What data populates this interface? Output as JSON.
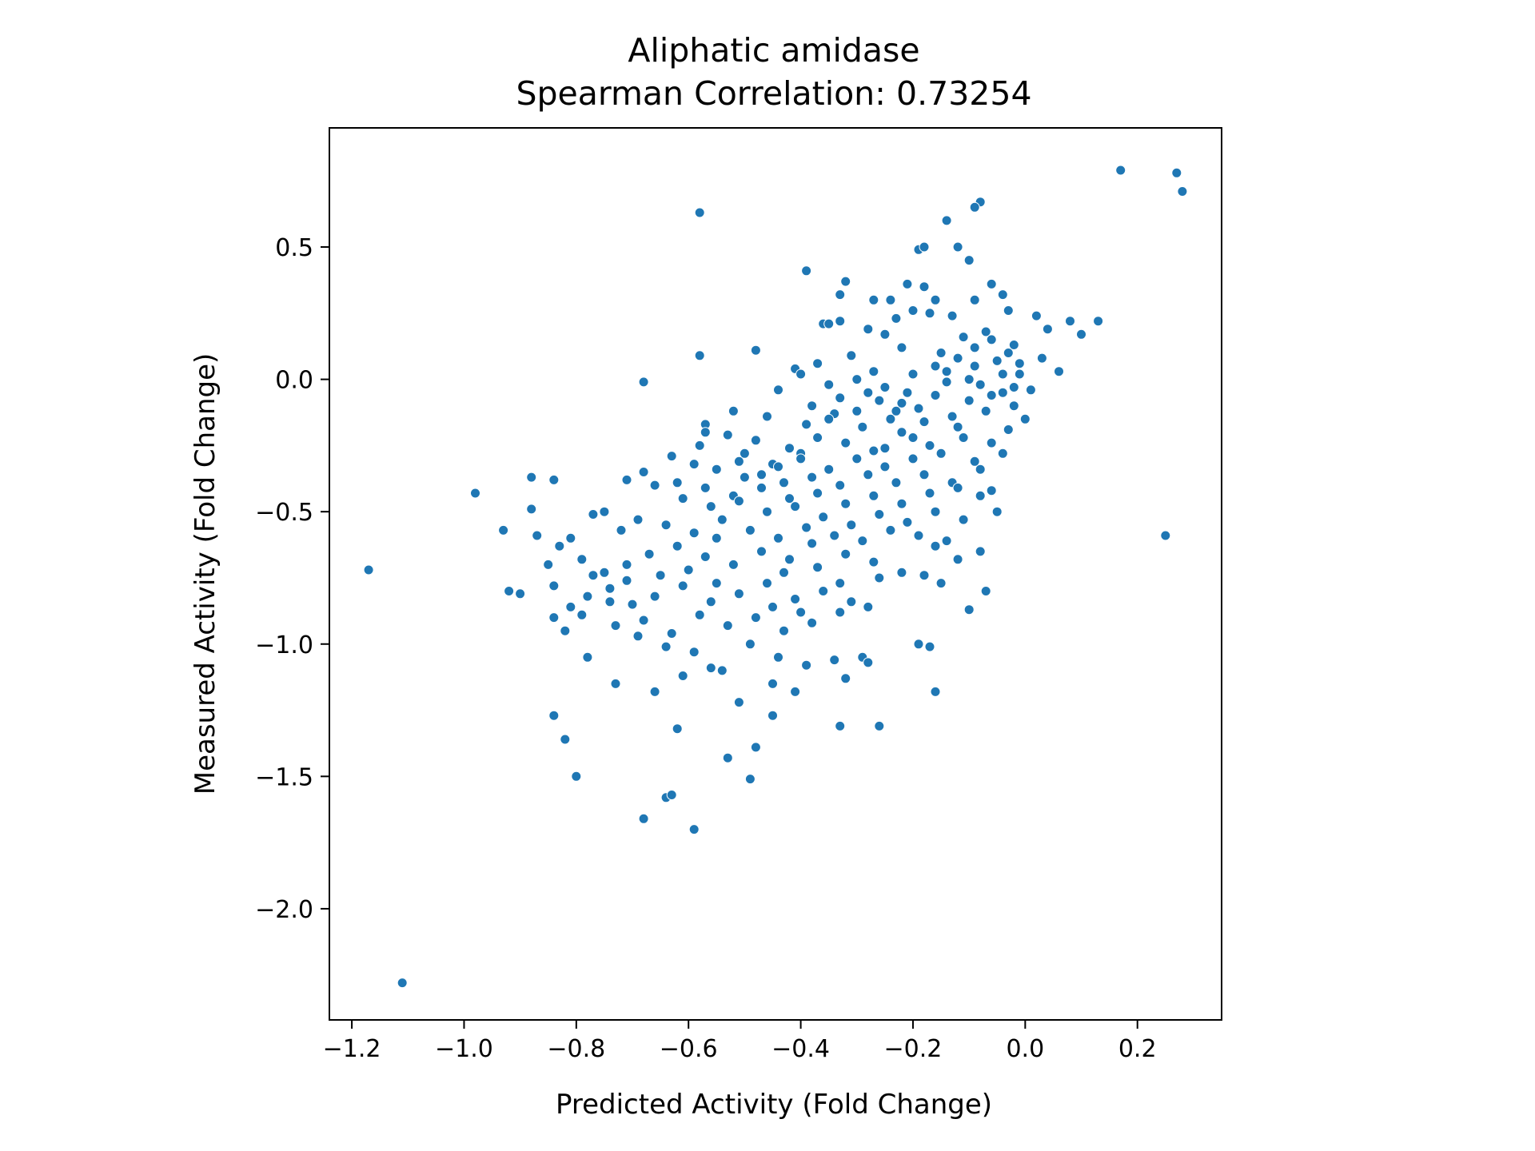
{
  "chart_data": {
    "type": "scatter",
    "title": "Aliphatic amidase",
    "subtitle": "Spearman Correlation: 0.73254",
    "xlabel": "Predicted Activity (Fold Change)",
    "ylabel": "Measured Activity (Fold Change)",
    "xlim": [
      -1.24,
      0.35
    ],
    "ylim": [
      -2.42,
      0.95
    ],
    "xticks": [
      -1.2,
      -1.0,
      -0.8,
      -0.6,
      -0.4,
      -0.2,
      0.0,
      0.2
    ],
    "xtick_labels": [
      "−1.2",
      "−1.0",
      "−0.8",
      "−0.6",
      "−0.4",
      "−0.2",
      "0.0",
      "0.2"
    ],
    "yticks": [
      0.5,
      0.0,
      -0.5,
      -1.0,
      -1.5,
      -2.0
    ],
    "ytick_labels": [
      "0.5",
      "0.0",
      "−0.5",
      "−1.0",
      "−1.5",
      "−2.0"
    ],
    "grid": false,
    "legend": "none",
    "marker_color": "#1f77b4",
    "points": [
      [
        0.17,
        0.79
      ],
      [
        0.27,
        0.78
      ],
      [
        0.28,
        0.71
      ],
      [
        -0.58,
        0.63
      ],
      [
        -0.08,
        0.67
      ],
      [
        -0.09,
        0.65
      ],
      [
        -0.14,
        0.6
      ],
      [
        -0.19,
        0.49
      ],
      [
        -0.18,
        0.5
      ],
      [
        -0.12,
        0.5
      ],
      [
        -0.1,
        0.45
      ],
      [
        -0.39,
        0.41
      ],
      [
        -0.32,
        0.37
      ],
      [
        -0.06,
        0.36
      ],
      [
        -0.33,
        0.32
      ],
      [
        -0.27,
        0.3
      ],
      [
        -0.21,
        0.36
      ],
      [
        -0.18,
        0.35
      ],
      [
        -0.24,
        0.3
      ],
      [
        -0.16,
        0.3
      ],
      [
        -0.04,
        0.32
      ],
      [
        -0.36,
        0.21
      ],
      [
        -0.35,
        0.21
      ],
      [
        -0.33,
        0.22
      ],
      [
        -0.28,
        0.19
      ],
      [
        -0.25,
        0.17
      ],
      [
        -0.23,
        0.23
      ],
      [
        -0.2,
        0.26
      ],
      [
        -0.17,
        0.25
      ],
      [
        -0.13,
        0.24
      ],
      [
        -0.09,
        0.3
      ],
      [
        -0.03,
        0.26
      ],
      [
        0.02,
        0.24
      ],
      [
        0.04,
        0.19
      ],
      [
        0.08,
        0.22
      ],
      [
        0.1,
        0.17
      ],
      [
        0.13,
        0.22
      ],
      [
        -0.58,
        0.09
      ],
      [
        -0.48,
        0.11
      ],
      [
        -0.41,
        0.04
      ],
      [
        -0.37,
        0.06
      ],
      [
        -0.31,
        0.09
      ],
      [
        -0.27,
        0.03
      ],
      [
        -0.22,
        0.12
      ],
      [
        -0.15,
        0.1
      ],
      [
        -0.11,
        0.16
      ],
      [
        -0.07,
        0.18
      ],
      [
        -0.02,
        0.13
      ],
      [
        0.03,
        0.08
      ],
      [
        0.06,
        0.03
      ],
      [
        -0.68,
        -0.01
      ],
      [
        -0.4,
        0.02
      ],
      [
        -0.35,
        -0.02
      ],
      [
        -0.3,
        0.0
      ],
      [
        -0.25,
        -0.03
      ],
      [
        -0.2,
        0.02
      ],
      [
        -0.14,
        -0.01
      ],
      [
        -0.09,
        0.05
      ],
      [
        -0.05,
        0.07
      ],
      [
        -0.01,
        0.02
      ],
      [
        0.01,
        -0.04
      ],
      [
        -0.04,
        -0.05
      ],
      [
        -0.1,
        -0.08
      ],
      [
        -0.16,
        -0.06
      ],
      [
        -0.22,
        -0.09
      ],
      [
        -0.28,
        -0.05
      ],
      [
        -0.33,
        -0.07
      ],
      [
        -0.38,
        -0.1
      ],
      [
        -0.44,
        -0.04
      ],
      [
        -0.52,
        -0.12
      ],
      [
        -0.46,
        -0.14
      ],
      [
        -0.39,
        -0.17
      ],
      [
        -0.34,
        -0.13
      ],
      [
        -0.29,
        -0.18
      ],
      [
        -0.24,
        -0.15
      ],
      [
        -0.19,
        -0.11
      ],
      [
        -0.13,
        -0.14
      ],
      [
        -0.07,
        -0.12
      ],
      [
        -0.02,
        -0.1
      ],
      [
        0.0,
        -0.15
      ],
      [
        -0.57,
        -0.17
      ],
      [
        -0.57,
        -0.2
      ],
      [
        -0.53,
        -0.21
      ],
      [
        -0.48,
        -0.23
      ],
      [
        -0.42,
        -0.26
      ],
      [
        -0.37,
        -0.22
      ],
      [
        -0.32,
        -0.24
      ],
      [
        -0.27,
        -0.27
      ],
      [
        -0.22,
        -0.2
      ],
      [
        -0.17,
        -0.25
      ],
      [
        -0.11,
        -0.22
      ],
      [
        -0.06,
        -0.24
      ],
      [
        -0.03,
        -0.19
      ],
      [
        -0.58,
        -0.25
      ],
      [
        -0.5,
        -0.28
      ],
      [
        -0.45,
        -0.32
      ],
      [
        -0.4,
        -0.28
      ],
      [
        -0.35,
        -0.34
      ],
      [
        -0.3,
        -0.3
      ],
      [
        -0.25,
        -0.33
      ],
      [
        -0.2,
        -0.3
      ],
      [
        -0.15,
        -0.28
      ],
      [
        -0.09,
        -0.31
      ],
      [
        -0.04,
        -0.28
      ],
      [
        -0.63,
        -0.29
      ],
      [
        -0.59,
        -0.32
      ],
      [
        -0.55,
        -0.34
      ],
      [
        -0.51,
        -0.31
      ],
      [
        -0.47,
        -0.36
      ],
      [
        -0.43,
        -0.39
      ],
      [
        -0.38,
        -0.37
      ],
      [
        -0.33,
        -0.4
      ],
      [
        -0.28,
        -0.36
      ],
      [
        -0.23,
        -0.39
      ],
      [
        -0.18,
        -0.36
      ],
      [
        -0.13,
        -0.39
      ],
      [
        -0.08,
        -0.34
      ],
      [
        -0.68,
        -0.35
      ],
      [
        -0.62,
        -0.39
      ],
      [
        -0.57,
        -0.41
      ],
      [
        -0.52,
        -0.44
      ],
      [
        -0.47,
        -0.41
      ],
      [
        -0.42,
        -0.45
      ],
      [
        -0.37,
        -0.43
      ],
      [
        -0.32,
        -0.47
      ],
      [
        -0.27,
        -0.44
      ],
      [
        -0.22,
        -0.47
      ],
      [
        -0.17,
        -0.43
      ],
      [
        -0.12,
        -0.41
      ],
      [
        -0.08,
        -0.44
      ],
      [
        -0.06,
        -0.42
      ],
      [
        -0.71,
        -0.38
      ],
      [
        -0.66,
        -0.4
      ],
      [
        -0.61,
        -0.45
      ],
      [
        -0.56,
        -0.48
      ],
      [
        -0.51,
        -0.46
      ],
      [
        -0.46,
        -0.5
      ],
      [
        -0.41,
        -0.48
      ],
      [
        -0.36,
        -0.52
      ],
      [
        -0.31,
        -0.55
      ],
      [
        -0.26,
        -0.51
      ],
      [
        -0.21,
        -0.54
      ],
      [
        -0.16,
        -0.5
      ],
      [
        -0.11,
        -0.53
      ],
      [
        -0.05,
        -0.5
      ],
      [
        -0.88,
        -0.37
      ],
      [
        -0.84,
        -0.38
      ],
      [
        -0.98,
        -0.43
      ],
      [
        -0.77,
        -0.51
      ],
      [
        -0.75,
        -0.5
      ],
      [
        -0.72,
        -0.57
      ],
      [
        -0.69,
        -0.53
      ],
      [
        -0.64,
        -0.55
      ],
      [
        -0.59,
        -0.58
      ],
      [
        -0.54,
        -0.53
      ],
      [
        -0.49,
        -0.57
      ],
      [
        -0.44,
        -0.6
      ],
      [
        -0.39,
        -0.56
      ],
      [
        -0.34,
        -0.59
      ],
      [
        -0.29,
        -0.61
      ],
      [
        -0.24,
        -0.57
      ],
      [
        -0.19,
        -0.59
      ],
      [
        -0.14,
        -0.61
      ],
      [
        -0.88,
        -0.49
      ],
      [
        -0.93,
        -0.57
      ],
      [
        -0.87,
        -0.59
      ],
      [
        -0.81,
        -0.6
      ],
      [
        -0.83,
        -0.63
      ],
      [
        -0.85,
        -0.7
      ],
      [
        -0.79,
        -0.68
      ],
      [
        -0.75,
        -0.73
      ],
      [
        -0.71,
        -0.7
      ],
      [
        -0.67,
        -0.66
      ],
      [
        -0.62,
        -0.63
      ],
      [
        -0.57,
        -0.67
      ],
      [
        -0.52,
        -0.7
      ],
      [
        -0.47,
        -0.65
      ],
      [
        -0.42,
        -0.68
      ],
      [
        -0.37,
        -0.71
      ],
      [
        -0.32,
        -0.66
      ],
      [
        -0.27,
        -0.69
      ],
      [
        -0.22,
        -0.73
      ],
      [
        -0.16,
        -0.63
      ],
      [
        -0.12,
        -0.68
      ],
      [
        -0.08,
        -0.65
      ],
      [
        -1.17,
        -0.72
      ],
      [
        -0.92,
        -0.8
      ],
      [
        -0.9,
        -0.81
      ],
      [
        -0.84,
        -0.78
      ],
      [
        -0.81,
        -0.86
      ],
      [
        -0.78,
        -0.82
      ],
      [
        -0.74,
        -0.79
      ],
      [
        -0.7,
        -0.85
      ],
      [
        -0.66,
        -0.82
      ],
      [
        -0.61,
        -0.78
      ],
      [
        -0.56,
        -0.84
      ],
      [
        -0.51,
        -0.81
      ],
      [
        -0.46,
        -0.77
      ],
      [
        -0.41,
        -0.83
      ],
      [
        -0.36,
        -0.8
      ],
      [
        -0.31,
        -0.84
      ],
      [
        -0.26,
        -0.75
      ],
      [
        -0.18,
        -0.74
      ],
      [
        -0.15,
        -0.77
      ],
      [
        -0.07,
        -0.8
      ],
      [
        -0.84,
        -0.9
      ],
      [
        -0.79,
        -0.89
      ],
      [
        -0.73,
        -0.93
      ],
      [
        -0.68,
        -0.91
      ],
      [
        -0.63,
        -0.96
      ],
      [
        -0.58,
        -0.89
      ],
      [
        -0.53,
        -0.93
      ],
      [
        -0.48,
        -0.9
      ],
      [
        -0.43,
        -0.95
      ],
      [
        -0.38,
        -0.92
      ],
      [
        -0.33,
        -0.88
      ],
      [
        -0.28,
        -0.86
      ],
      [
        -0.1,
        -0.87
      ],
      [
        -0.82,
        -0.95
      ],
      [
        -0.78,
        -1.05
      ],
      [
        -0.69,
        -0.97
      ],
      [
        -0.64,
        -1.01
      ],
      [
        -0.59,
        -1.03
      ],
      [
        -0.54,
        -1.1
      ],
      [
        -0.49,
        -1.0
      ],
      [
        -0.44,
        -1.05
      ],
      [
        -0.39,
        -1.08
      ],
      [
        -0.34,
        -1.06
      ],
      [
        -0.29,
        -1.05
      ],
      [
        -0.19,
        -1.0
      ],
      [
        -0.17,
        -1.01
      ],
      [
        -0.73,
        -1.15
      ],
      [
        -0.66,
        -1.18
      ],
      [
        -0.61,
        -1.12
      ],
      [
        -0.56,
        -1.09
      ],
      [
        -0.51,
        -1.22
      ],
      [
        -0.45,
        -1.15
      ],
      [
        -0.41,
        -1.18
      ],
      [
        -0.32,
        -1.13
      ],
      [
        -0.28,
        -1.07
      ],
      [
        -0.16,
        -1.18
      ],
      [
        -0.84,
        -1.27
      ],
      [
        -0.82,
        -1.36
      ],
      [
        -0.62,
        -1.32
      ],
      [
        -0.48,
        -1.39
      ],
      [
        -0.45,
        -1.27
      ],
      [
        -0.33,
        -1.31
      ],
      [
        -0.26,
        -1.31
      ],
      [
        -0.8,
        -1.5
      ],
      [
        -0.53,
        -1.43
      ],
      [
        -0.49,
        -1.51
      ],
      [
        -0.64,
        -1.58
      ],
      [
        -0.63,
        -1.57
      ],
      [
        -0.68,
        -1.66
      ],
      [
        -0.59,
        -1.7
      ],
      [
        -1.11,
        -2.28
      ],
      [
        0.25,
        -0.59
      ],
      [
        -0.35,
        -0.15
      ],
      [
        -0.3,
        -0.12
      ],
      [
        -0.26,
        -0.08
      ],
      [
        -0.21,
        -0.05
      ],
      [
        -0.16,
        0.05
      ],
      [
        -0.12,
        0.08
      ],
      [
        -0.09,
        0.12
      ],
      [
        -0.06,
        0.15
      ],
      [
        -0.03,
        0.1
      ],
      [
        -0.01,
        0.06
      ],
      [
        -0.04,
        0.02
      ],
      [
        -0.08,
        -0.02
      ],
      [
        -0.12,
        -0.18
      ],
      [
        -0.18,
        -0.16
      ],
      [
        -0.23,
        -0.12
      ],
      [
        -0.06,
        -0.06
      ],
      [
        -0.02,
        -0.03
      ],
      [
        -0.1,
        0.0
      ],
      [
        -0.14,
        0.03
      ],
      [
        -0.2,
        -0.22
      ],
      [
        -0.25,
        -0.26
      ],
      [
        -0.4,
        -0.3
      ],
      [
        -0.44,
        -0.33
      ],
      [
        -0.5,
        -0.37
      ],
      [
        -0.55,
        -0.6
      ],
      [
        -0.6,
        -0.72
      ],
      [
        -0.65,
        -0.74
      ],
      [
        -0.43,
        -0.73
      ],
      [
        -0.38,
        -0.62
      ],
      [
        -0.33,
        -0.77
      ],
      [
        -0.45,
        -0.86
      ],
      [
        -0.4,
        -0.88
      ],
      [
        -0.55,
        -0.77
      ],
      [
        -0.71,
        -0.76
      ],
      [
        -0.74,
        -0.84
      ],
      [
        -0.77,
        -0.74
      ]
    ]
  }
}
